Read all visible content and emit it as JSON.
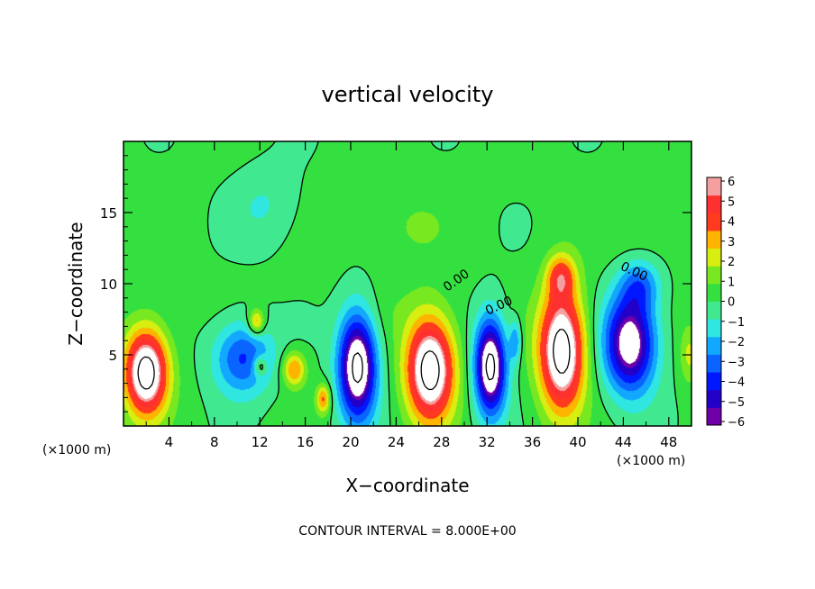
{
  "chart_data": {
    "type": "heatmap",
    "title": "vertical velocity",
    "xlabel": "X−coordinate",
    "ylabel": "Z−coordinate",
    "x_unit_left": "(×1000 m)",
    "x_unit_right": "(×1000 m)",
    "footer": "CONTOUR INTERVAL = 8.000E+00",
    "xlim": [
      0,
      50
    ],
    "ylim": [
      0,
      20
    ],
    "x_ticks": [
      "4",
      "8",
      "12",
      "16",
      "20",
      "24",
      "28",
      "32",
      "36",
      "40",
      "44",
      "48"
    ],
    "y_ticks": [
      "5",
      "10",
      "15"
    ],
    "contour_labels": [
      "0.00",
      "0.00",
      "0.00"
    ],
    "colorbar": {
      "range": [
        -6,
        6
      ],
      "ticks": [
        "6",
        "5",
        "4",
        "3",
        "2",
        "1",
        "0",
        "−1",
        "−2",
        "−3",
        "−4",
        "−5",
        "−6"
      ]
    },
    "features": [
      {
        "x": 2.0,
        "z": 3.8,
        "sx": 1.9,
        "sz": 3.0,
        "w": 9
      },
      {
        "x": 10.5,
        "z": 4.8,
        "sx": 2.6,
        "sz": 2.6,
        "w": -4.5
      },
      {
        "x": 11.7,
        "z": 7.3,
        "sx": 0.7,
        "sz": 0.9,
        "w": 4
      },
      {
        "x": 12.0,
        "z": 4.2,
        "sx": 0.6,
        "sz": 0.7,
        "w": 3
      },
      {
        "x": 15.0,
        "z": 4.0,
        "sx": 1.0,
        "sz": 1.2,
        "w": 4
      },
      {
        "x": 17.6,
        "z": 1.9,
        "sx": 0.6,
        "sz": 1.0,
        "w": 4
      },
      {
        "x": 20.6,
        "z": 4.2,
        "sx": 1.7,
        "sz": 3.8,
        "w": -9
      },
      {
        "x": 27.0,
        "z": 4.0,
        "sx": 2.1,
        "sz": 3.6,
        "w": 9
      },
      {
        "x": 32.3,
        "z": 4.2,
        "sx": 1.4,
        "sz": 3.4,
        "w": -9
      },
      {
        "x": 34.5,
        "z": 6.0,
        "sx": 0.5,
        "sz": 1.5,
        "w": -3
      },
      {
        "x": 38.6,
        "z": 5.3,
        "sx": 2.0,
        "sz": 4.2,
        "w": 9
      },
      {
        "x": 38.5,
        "z": 10.5,
        "sx": 1.2,
        "sz": 1.5,
        "w": 4
      },
      {
        "x": 44.6,
        "z": 5.8,
        "sx": 2.3,
        "sz": 3.5,
        "w": -8
      },
      {
        "x": 45.5,
        "z": 10.0,
        "sx": 1.8,
        "sz": 1.8,
        "w": -3
      },
      {
        "x": 12.5,
        "z": 15.5,
        "sx": 3.0,
        "sz": 3.0,
        "w": -1.3
      },
      {
        "x": 24.5,
        "z": 14.0,
        "sx": 4.0,
        "sz": 3.0,
        "w": 0.8
      },
      {
        "x": 46.0,
        "z": 13.5,
        "sx": 3.0,
        "sz": 3.0,
        "w": 0.7
      },
      {
        "x": 24.0,
        "z": 8.0,
        "sx": 3.0,
        "sz": 2.0,
        "w": 0.4
      },
      {
        "x": 49.8,
        "z": 5.0,
        "sx": 0.8,
        "sz": 2.0,
        "w": 2
      }
    ]
  }
}
